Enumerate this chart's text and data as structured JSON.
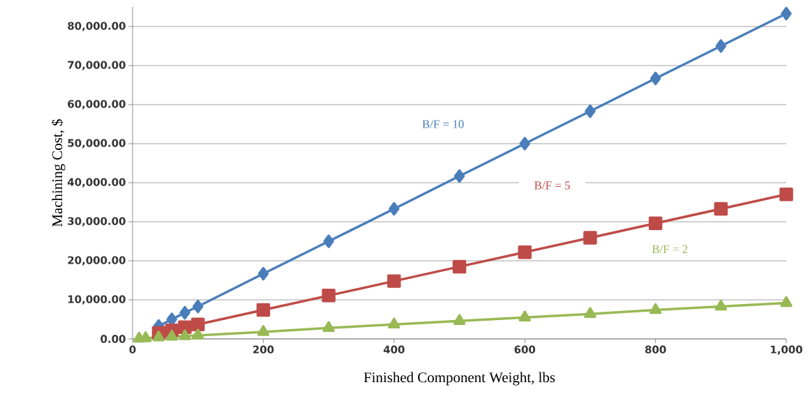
{
  "chart_data": {
    "type": "line",
    "xlabel": "Finished Component Weight, lbs",
    "ylabel": "Machining Cost, $",
    "x": [
      10,
      20,
      40,
      60,
      80,
      100,
      200,
      300,
      400,
      500,
      600,
      700,
      800,
      900,
      1000
    ],
    "series": [
      {
        "name": "B/F = 10",
        "color": "#4a7ebb",
        "marker": "diamond",
        "values": [
          null,
          null,
          3300,
          5000,
          6700,
          8300,
          16700,
          25000,
          33300,
          41700,
          50000,
          58300,
          66700,
          75000,
          83300
        ]
      },
      {
        "name": "B/F = 5",
        "color": "#be4b48",
        "marker": "square",
        "values": [
          null,
          null,
          1500,
          2200,
          3000,
          3700,
          7400,
          11100,
          14800,
          18500,
          22200,
          25900,
          29600,
          33300,
          37000
        ]
      },
      {
        "name": "B/F = 2",
        "color": "#98b954",
        "marker": "triangle",
        "values": [
          100,
          200,
          400,
          600,
          700,
          900,
          1800,
          2800,
          3700,
          4600,
          5500,
          6400,
          7400,
          8300,
          9200
        ]
      }
    ],
    "xlim": [
      0,
      1000
    ],
    "ylim": [
      0,
      85000
    ],
    "xticks": [
      0,
      200,
      400,
      600,
      800,
      {
        "value": 1000,
        "label": "1,000"
      }
    ],
    "yticks": [
      {
        "value": 0,
        "label": "0.00"
      },
      {
        "value": 10000,
        "label": "10,000.00"
      },
      {
        "value": 20000,
        "label": "20,000.00"
      },
      {
        "value": 30000,
        "label": "30,000.00"
      },
      {
        "value": 40000,
        "label": "40,000.00"
      },
      {
        "value": 50000,
        "label": "50,000.00"
      },
      {
        "value": 60000,
        "label": "60,000.00"
      },
      {
        "value": 70000,
        "label": "70,000.00"
      },
      {
        "value": 80000,
        "label": "80,000.00"
      }
    ],
    "grid": "y",
    "line_style": "solid"
  }
}
